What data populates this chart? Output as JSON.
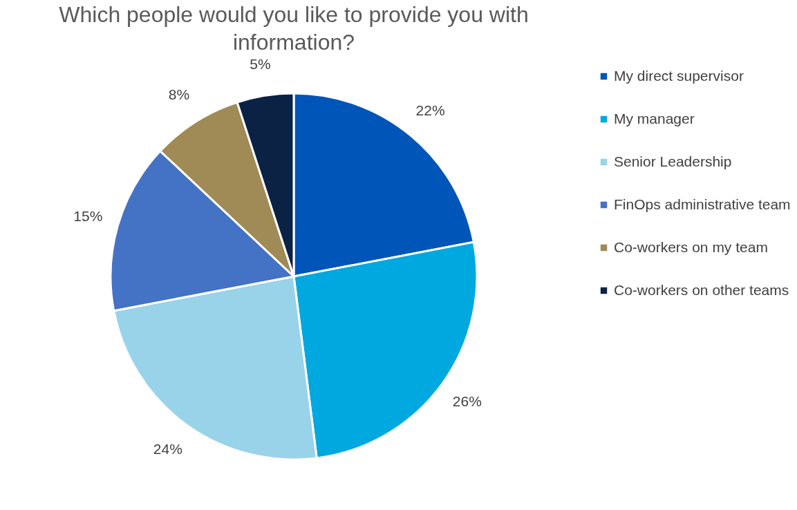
{
  "chart_data": {
    "type": "pie",
    "title": "Which people would you like to provide you with information?",
    "categories": [
      "My direct supervisor",
      "My manager",
      "Senior Leadership",
      "FinOps administrative team",
      "Co-workers on my team",
      "Co-workers on other teams"
    ],
    "values": [
      22,
      26,
      24,
      15,
      8,
      5
    ],
    "colors": [
      "#0055b8",
      "#00a8e0",
      "#99d3ea",
      "#4472c4",
      "#a08a55",
      "#0c2244"
    ],
    "value_labels": [
      "22%",
      "26%",
      "24%",
      "15%",
      "8%",
      "5%"
    ],
    "legend": "right"
  }
}
